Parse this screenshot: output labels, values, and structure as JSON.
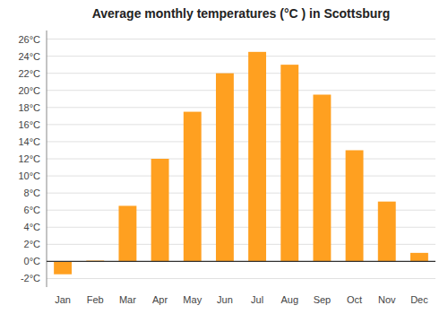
{
  "chart_data": {
    "type": "bar",
    "title": "Average monthly temperatures (°C ) in Scottsburg",
    "categories": [
      "Jan",
      "Feb",
      "Mar",
      "Apr",
      "May",
      "Jun",
      "Jul",
      "Aug",
      "Sep",
      "Oct",
      "Nov",
      "Dec"
    ],
    "values": [
      -1.5,
      0.1,
      6.5,
      12.0,
      17.5,
      22.0,
      24.5,
      23.0,
      19.5,
      13.0,
      7.0,
      1.0
    ],
    "color": "#FFA020",
    "ylim": [
      -3,
      27
    ],
    "yticks": [
      {
        "value": -2,
        "label": "-2°C"
      },
      {
        "value": 0,
        "label": "0°C"
      },
      {
        "value": 2,
        "label": "2°C"
      },
      {
        "value": 4,
        "label": "4°C"
      },
      {
        "value": 6,
        "label": "6°C"
      },
      {
        "value": 8,
        "label": "8°C"
      },
      {
        "value": 10,
        "label": "10°C"
      },
      {
        "value": 12,
        "label": "12°C"
      },
      {
        "value": 14,
        "label": "14°C"
      },
      {
        "value": 16,
        "label": "16°C"
      },
      {
        "value": 18,
        "label": "18°C"
      },
      {
        "value": 20,
        "label": "20°C"
      },
      {
        "value": 22,
        "label": "22°C"
      },
      {
        "value": 24,
        "label": "24°C"
      },
      {
        "value": 26,
        "label": "26°C"
      }
    ],
    "grid": true
  }
}
